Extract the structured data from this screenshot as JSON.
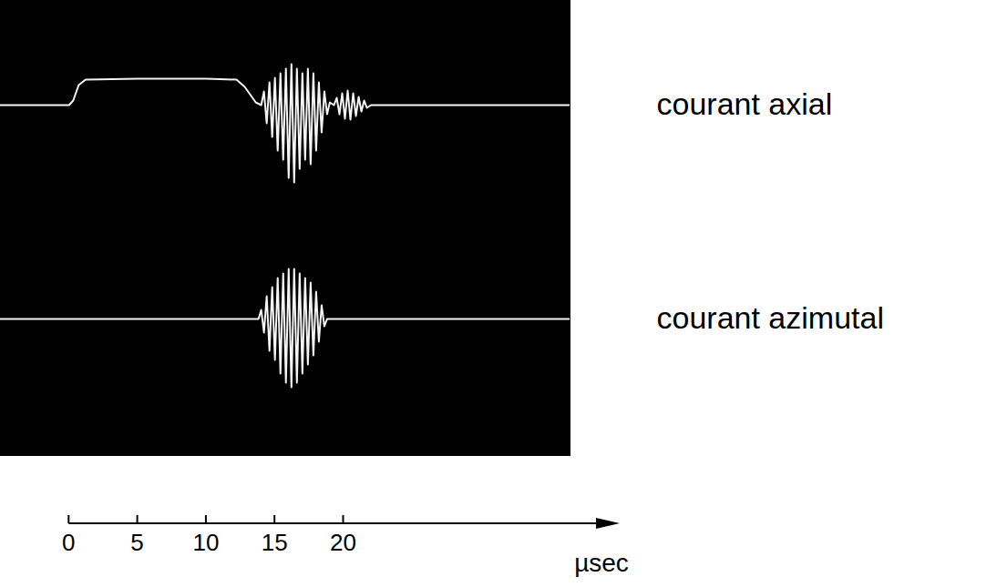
{
  "chart_data": [
    {
      "type": "line",
      "xlim": [
        -5,
        36.5
      ],
      "ylim": [
        -13.5,
        11.5
      ],
      "tick_labels": false,
      "legend": "right",
      "series": [
        {
          "name": "courant axial",
          "color": "#f4f4f4",
          "x": [
            -5,
            0,
            0.3,
            0.7,
            1.2,
            5,
            10,
            12.2,
            12.8,
            13.6,
            14.0,
            14.2,
            14.4,
            14.6,
            14.8,
            15.0,
            15.2,
            15.4,
            15.6,
            15.8,
            16.0,
            16.2,
            16.4,
            16.6,
            16.8,
            17.0,
            17.2,
            17.4,
            17.6,
            17.8,
            18.0,
            18.2,
            18.4,
            18.6,
            18.8,
            19.0,
            19.3,
            19.5,
            19.7,
            19.9,
            20.1,
            20.3,
            20.5,
            20.7,
            20.9,
            21.1,
            21.3,
            21.5,
            21.7,
            22,
            36.5
          ],
          "values": [
            0,
            0,
            0.5,
            2.2,
            2.8,
            2.9,
            2.9,
            2.8,
            2,
            0.3,
            0,
            1.5,
            -2,
            2.5,
            -3.5,
            3,
            -5,
            3.5,
            -6,
            4,
            -8,
            4.5,
            -8.5,
            4,
            -7,
            3.5,
            -6,
            4,
            -6.5,
            3.5,
            -5,
            2.5,
            -3,
            1.5,
            -1,
            0.3,
            0,
            0.8,
            -1,
            1.3,
            -1.5,
            1.6,
            -1.6,
            1.3,
            -1.2,
            0.9,
            -0.7,
            0.5,
            -0.3,
            0,
            0
          ]
        }
      ]
    },
    {
      "type": "line",
      "xlim": [
        -5,
        36.5
      ],
      "ylim": [
        -15,
        10
      ],
      "xticks": [
        0,
        5,
        10,
        15,
        20
      ],
      "xlabel": "µsec",
      "tick_labels": "x",
      "legend": "right",
      "series": [
        {
          "name": "courant azimutal",
          "color": "#f4f4f4",
          "x": [
            -5,
            13.8,
            14.0,
            14.2,
            14.4,
            14.6,
            14.8,
            15.0,
            15.2,
            15.4,
            15.6,
            15.8,
            16.0,
            16.2,
            16.4,
            16.6,
            16.8,
            17.0,
            17.2,
            17.4,
            17.6,
            17.8,
            18.0,
            18.2,
            18.4,
            18.6,
            18.8,
            36.5
          ],
          "values": [
            0,
            0,
            1,
            -1.5,
            2.5,
            -3.5,
            3.5,
            -4.5,
            4.5,
            -6,
            5,
            -7,
            5.5,
            -7.5,
            5.5,
            -7,
            5,
            -6,
            4.5,
            -5,
            4,
            -4,
            3,
            -2.5,
            1.5,
            -0.8,
            0,
            0
          ]
        }
      ]
    }
  ]
}
